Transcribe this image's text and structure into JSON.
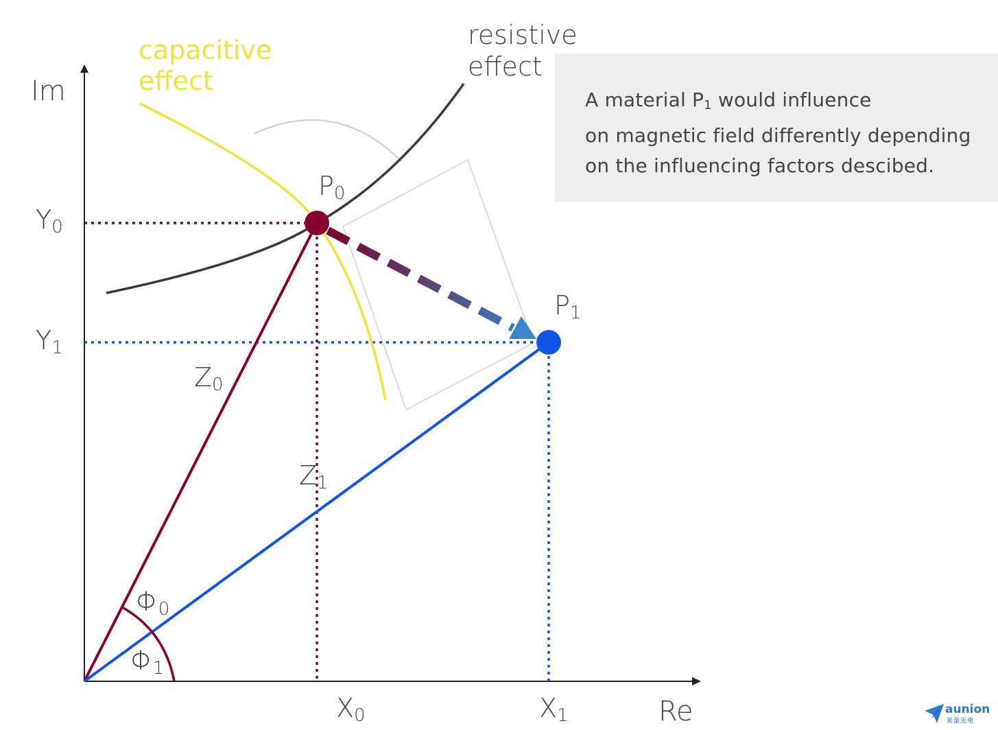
{
  "axes": {
    "y_label": "Im",
    "x_label": "Re"
  },
  "curves": {
    "capacitive": {
      "label_line1": "capacitive",
      "label_line2": "effect"
    },
    "resistive": {
      "label_line1": "resistive",
      "label_line2": "effect"
    }
  },
  "points": {
    "p0": {
      "name": "P",
      "sub": "0"
    },
    "p1": {
      "name": "P",
      "sub": "1"
    }
  },
  "projections": {
    "y0": {
      "name": "Y",
      "sub": "0"
    },
    "y1": {
      "name": "Y",
      "sub": "1"
    },
    "x0": {
      "name": "X",
      "sub": "0"
    },
    "x1": {
      "name": "X",
      "sub": "1"
    }
  },
  "vectors": {
    "z0": {
      "name": "Z",
      "sub": "0"
    },
    "z1": {
      "name": "Z",
      "sub": "1"
    }
  },
  "angles": {
    "phi0": {
      "name": "Φ",
      "sub": "0"
    },
    "phi1": {
      "name": "Φ",
      "sub": "1"
    }
  },
  "info": {
    "line1_pre": "A material P",
    "line1_sub": "1",
    "line1_post": " would influence",
    "line2": "on magnetic field differently depending",
    "line3": "on the influencing factors descibed."
  },
  "logo": {
    "name": "aunion",
    "subtitle": "昊量光电"
  },
  "colors": {
    "p0": "#8a0030",
    "p1": "#1155e6",
    "capacitive": "#f2e33a",
    "resistive": "#3a3a3a",
    "axis": "#222222",
    "info_bg": "#eeeeee"
  }
}
